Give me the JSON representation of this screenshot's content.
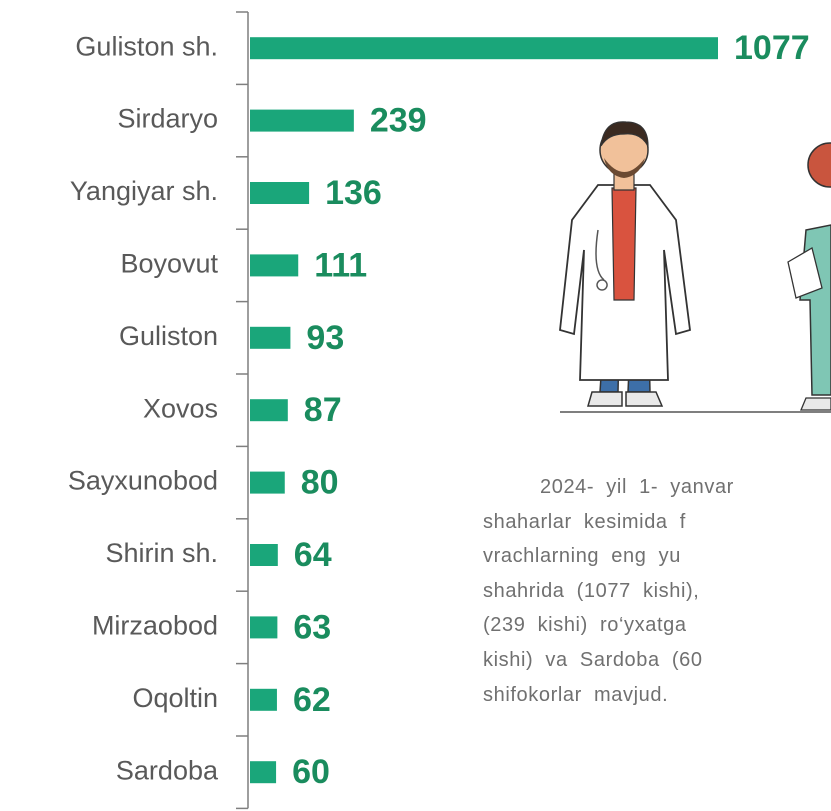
{
  "chart_data": {
    "type": "bar",
    "orientation": "horizontal",
    "categories": [
      "Guliston sh.",
      "Sirdaryo",
      "Yangiyar sh.",
      "Boyovut",
      "Guliston",
      "Xovos",
      "Sayxunobod",
      "Shirin sh.",
      "Mirzaobod",
      "Oqoltin",
      "Sardoba"
    ],
    "values": [
      1077,
      239,
      136,
      111,
      93,
      87,
      80,
      64,
      63,
      62,
      60
    ],
    "color": "#1aa67a",
    "label_color": "#1a8c5e"
  },
  "paragraph": {
    "lines": [
      "2024- yil 1- yanvar",
      "shaharlar kesimida f",
      "vrachlarning eng yu",
      "shahrida (1077 kishi),",
      "(239 kishi) ro‘yxatga",
      "kishi) va Sardoba (60",
      "shifokorlar mavjud."
    ]
  }
}
